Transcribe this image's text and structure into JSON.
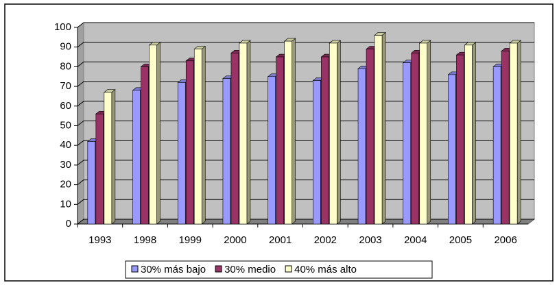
{
  "chart_data": {
    "type": "bar3d",
    "categories": [
      "1993",
      "1998",
      "1999",
      "2000",
      "2001",
      "2002",
      "2003",
      "2004",
      "2005",
      "2006"
    ],
    "series": [
      {
        "name": "30% más bajo",
        "color": "#9999ff",
        "values": [
          42,
          68,
          72,
          74,
          75,
          73,
          79,
          82,
          76,
          80
        ]
      },
      {
        "name": "30% medio",
        "color": "#993366",
        "values": [
          56,
          80,
          83,
          87,
          85,
          85,
          89,
          87,
          86,
          88
        ]
      },
      {
        "name": "40% más alto",
        "color": "#ffffcc",
        "values": [
          67,
          91,
          89,
          92,
          93,
          92,
          96,
          92,
          91,
          92
        ]
      }
    ],
    "ylim": [
      0,
      100
    ],
    "yticks": [
      0,
      10,
      20,
      30,
      40,
      50,
      60,
      70,
      80,
      90,
      100
    ],
    "grid": true,
    "legend": "bottom"
  }
}
